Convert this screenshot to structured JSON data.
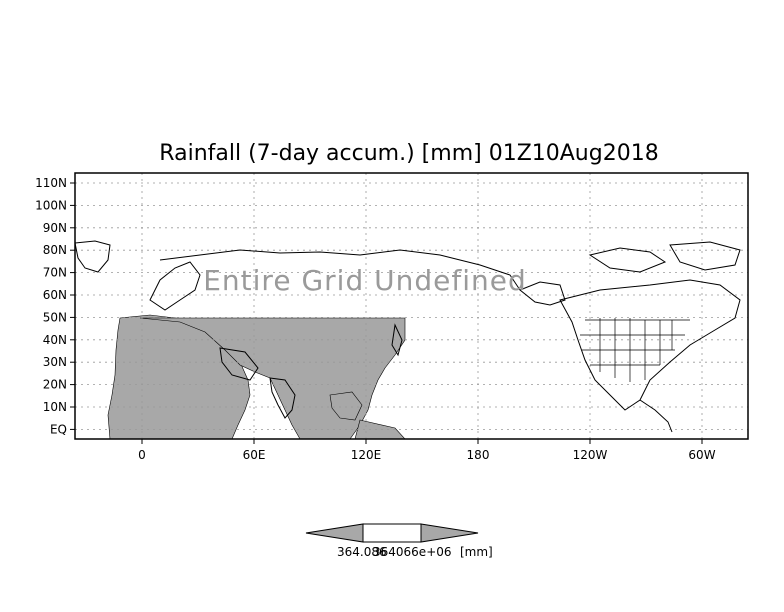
{
  "map": {
    "title": "Rainfall (7-day accum.) [mm] 01Z10Aug2018",
    "overlay_text": "Entire Grid Undefined",
    "lat_labels": [
      "110N",
      "100N",
      "90N",
      "80N",
      "70N",
      "60N",
      "50N",
      "40N",
      "30N",
      "20N",
      "10N",
      "EQ"
    ],
    "lon_labels": [
      "0",
      "60E",
      "120E",
      "180",
      "120W",
      "60W"
    ],
    "colors": {
      "land_outline": "#000000",
      "shaded_land": "#a8a8a8",
      "overlay_text": "#9a9a9a",
      "grid": "#999999"
    }
  },
  "colorbar": {
    "label_left": "364.086",
    "label_mid": "364066e+06",
    "label_unit": "[mm]",
    "colors": {
      "left_triangle": "#a8a8a8",
      "right_triangle": "#a8a8a8",
      "center": "#ffffff"
    }
  }
}
